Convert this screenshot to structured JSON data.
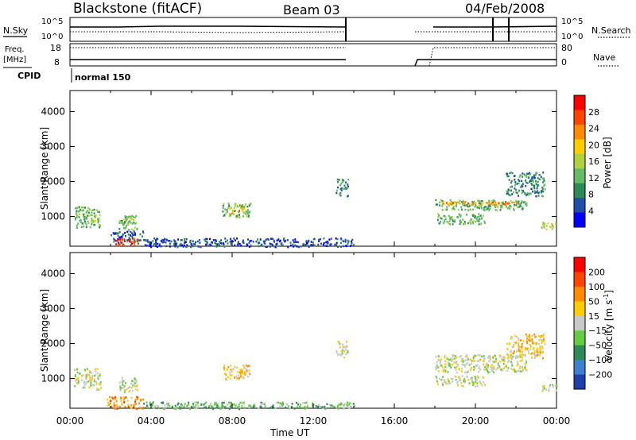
{
  "header": {
    "station": "Blackstone (fitACF)",
    "beam": "Beam 03",
    "date": "04/Feb/2008"
  },
  "summary_panel": {
    "nsky_label": "N.Sky",
    "nsearch_label": "N.Search",
    "freq_label": "Freq.",
    "freq_unit": "[MHz]",
    "nave_label": "Nave",
    "cpid_label": "CPID",
    "cpid_value": "normal 150",
    "noise_ticks_left": [
      "10^5",
      "10^0"
    ],
    "noise_ticks_right": [
      "10^5",
      "10^0"
    ],
    "freq_ticks": [
      "18",
      "8"
    ],
    "nave_ticks": [
      "80",
      "0"
    ]
  },
  "x_axis": {
    "label": "Time UT",
    "ticks": [
      "00:00",
      "04:00",
      "08:00",
      "12:00",
      "16:00",
      "20:00",
      "00:00"
    ]
  },
  "colors": {
    "power_scale": [
      "#0000ff",
      "#1f4fa8",
      "#2e8b57",
      "#66bb66",
      "#b0d040",
      "#ffcc00",
      "#ff8c00",
      "#ff4500",
      "#ff0000"
    ],
    "velocity_scale": [
      "#1f3fa8",
      "#3f7fd0",
      "#2e8b57",
      "#66cc44",
      "#c8c8c8",
      "#ffcc00",
      "#ff8c00",
      "#ff4500",
      "#ff0000"
    ]
  },
  "chart_data": [
    {
      "type": "heatmap",
      "name": "power",
      "title": "",
      "xlabel": "",
      "ylabel": "Slant Range [km]",
      "ylim": [
        150,
        4600
      ],
      "yticks": [
        "1000",
        "2000",
        "3000",
        "4000"
      ],
      "colorbar_label": "Power [dB]",
      "colorbar_ticks": [
        "28",
        "24",
        "20",
        "16",
        "12",
        "8",
        "4"
      ],
      "patches": [
        {
          "t": [
            0.2,
            1.5
          ],
          "r": [
            700,
            1300
          ],
          "level": 3
        },
        {
          "t": [
            0.8,
            1.4
          ],
          "r": [
            800,
            950
          ],
          "level": 4
        },
        {
          "t": [
            2.4,
            3.3
          ],
          "r": [
            600,
            1050
          ],
          "level": 3
        },
        {
          "t": [
            2.6,
            3.2
          ],
          "r": [
            750,
            950
          ],
          "level": 4
        },
        {
          "t": [
            2.0,
            3.6
          ],
          "r": [
            250,
            600
          ],
          "level": 1
        },
        {
          "t": [
            2.2,
            3.4
          ],
          "r": [
            200,
            400
          ],
          "level": 7
        },
        {
          "t": [
            7.5,
            8.9
          ],
          "r": [
            1000,
            1400
          ],
          "level": 3
        },
        {
          "t": [
            7.8,
            8.6
          ],
          "r": [
            1100,
            1300
          ],
          "level": 5
        },
        {
          "t": [
            3.6,
            14.0
          ],
          "r": [
            150,
            400
          ],
          "level": 1
        },
        {
          "t": [
            13.1,
            13.7
          ],
          "r": [
            1600,
            2100
          ],
          "level": 2
        },
        {
          "t": [
            18.0,
            22.5
          ],
          "r": [
            1200,
            1500
          ],
          "level": 3
        },
        {
          "t": [
            18.2,
            22.0
          ],
          "r": [
            1350,
            1450
          ],
          "level": 6
        },
        {
          "t": [
            18.0,
            20.5
          ],
          "r": [
            800,
            1100
          ],
          "level": 3
        },
        {
          "t": [
            21.5,
            23.4
          ],
          "r": [
            1600,
            2300
          ],
          "level": 2
        },
        {
          "t": [
            23.2,
            24.0
          ],
          "r": [
            650,
            850
          ],
          "level": 4
        }
      ]
    },
    {
      "type": "heatmap",
      "name": "velocity",
      "title": "",
      "xlabel": "Time UT",
      "ylabel": "Slant Range [km]",
      "ylim": [
        150,
        4600
      ],
      "yticks": [
        "1000",
        "2000",
        "3000",
        "4000"
      ],
      "colorbar_label": "Velocity [m s",
      "colorbar_label_sup": "-1",
      "colorbar_label_end": "]",
      "colorbar_ticks": [
        "200",
        "100",
        "50",
        "15",
        "−15",
        "−50",
        "−100",
        "−200"
      ],
      "patches": [
        {
          "t": [
            0.2,
            1.5
          ],
          "r": [
            700,
            1300
          ],
          "level": 4
        },
        {
          "t": [
            2.4,
            3.3
          ],
          "r": [
            600,
            1050
          ],
          "level": 4
        },
        {
          "t": [
            1.8,
            3.6
          ],
          "r": [
            150,
            500
          ],
          "level": 6
        },
        {
          "t": [
            7.5,
            8.9
          ],
          "r": [
            1000,
            1400
          ],
          "level": 5
        },
        {
          "t": [
            3.6,
            14.0
          ],
          "r": [
            150,
            350
          ],
          "level": 3
        },
        {
          "t": [
            13.1,
            13.7
          ],
          "r": [
            1600,
            2100
          ],
          "level": 4
        },
        {
          "t": [
            18.0,
            22.5
          ],
          "r": [
            1200,
            1700
          ],
          "level": 4
        },
        {
          "t": [
            18.0,
            20.5
          ],
          "r": [
            800,
            1100
          ],
          "level": 4
        },
        {
          "t": [
            21.5,
            23.4
          ],
          "r": [
            1600,
            2300
          ],
          "level": 5
        },
        {
          "t": [
            23.2,
            24.0
          ],
          "r": [
            650,
            850
          ],
          "level": 4
        }
      ]
    }
  ]
}
